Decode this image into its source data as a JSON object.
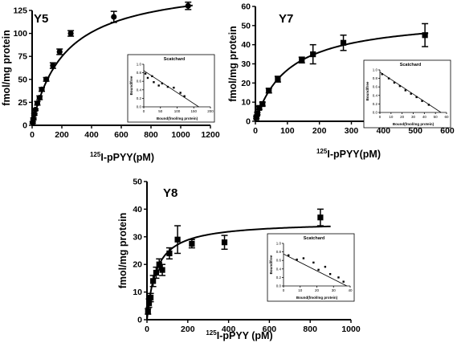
{
  "chart_data": [
    {
      "type": "scatter",
      "panel_label": "Y5",
      "xlabel_iso": "125",
      "xlabel_main": "I-pPYY(pM)",
      "ylabel": "fmol/mg protein",
      "xlim": [
        0,
        1200
      ],
      "ylim": [
        0,
        125
      ],
      "xticks": [
        0,
        200,
        400,
        600,
        800,
        1000,
        1200
      ],
      "yticks": [
        0,
        25,
        50,
        75,
        100,
        125
      ],
      "marker": "circle",
      "fit": {
        "model": "one-site binding",
        "bmax": 157,
        "kd": 220
      },
      "points": [
        {
          "x": 4,
          "y": 3
        },
        {
          "x": 9,
          "y": 7
        },
        {
          "x": 15,
          "y": 12
        },
        {
          "x": 22,
          "y": 17
        },
        {
          "x": 35,
          "y": 24
        },
        {
          "x": 50,
          "y": 30
        },
        {
          "x": 65,
          "y": 39
        },
        {
          "x": 95,
          "y": 50
        },
        {
          "x": 140,
          "y": 65
        },
        {
          "x": 185,
          "y": 80
        },
        {
          "x": 260,
          "y": 100
        },
        {
          "x": 550,
          "y": 118
        },
        {
          "x": 1050,
          "y": 130
        }
      ],
      "errors": [
        1,
        1,
        1,
        1,
        2,
        2,
        2,
        2,
        3,
        3,
        3,
        6,
        4
      ],
      "inset": {
        "title": "Scatchard",
        "xlabel": "Bound(fmol/mg protein)",
        "ylabel": "Bound/free",
        "xlim": [
          0,
          200
        ],
        "ylim": [
          0,
          1
        ],
        "xticks": [
          0,
          50,
          100,
          150,
          200
        ],
        "yticks": [
          0.0,
          0.2,
          0.4,
          0.6,
          0.8,
          1.0
        ],
        "points": [
          {
            "x": 5,
            "y": 0.78
          },
          {
            "x": 12,
            "y": 0.68
          },
          {
            "x": 25,
            "y": 0.72
          },
          {
            "x": 30,
            "y": 0.58
          },
          {
            "x": 45,
            "y": 0.5
          },
          {
            "x": 55,
            "y": 0.55
          },
          {
            "x": 72,
            "y": 0.47
          },
          {
            "x": 90,
            "y": 0.45
          },
          {
            "x": 110,
            "y": 0.33
          },
          {
            "x": 122,
            "y": 0.25
          }
        ],
        "line": {
          "x0": 0,
          "y0": 0.85,
          "x1": 165,
          "y1": 0.0
        }
      }
    },
    {
      "type": "scatter",
      "panel_label": "Y7",
      "xlabel_iso": "125",
      "xlabel_main": "I-pPYY(pM)",
      "ylabel": "fmol/mg protein",
      "xlim": [
        0,
        600
      ],
      "ylim": [
        0,
        60
      ],
      "xticks": [
        0,
        100,
        200,
        300,
        400,
        500,
        600
      ],
      "yticks": [
        0,
        10,
        20,
        30,
        40,
        50,
        60
      ],
      "marker": "square",
      "fit": {
        "model": "one-site binding",
        "bmax": 55,
        "kd": 105
      },
      "points": [
        {
          "x": 3,
          "y": 2
        },
        {
          "x": 6,
          "y": 4
        },
        {
          "x": 12,
          "y": 7
        },
        {
          "x": 22,
          "y": 9
        },
        {
          "x": 42,
          "y": 16
        },
        {
          "x": 70,
          "y": 22
        },
        {
          "x": 145,
          "y": 32
        },
        {
          "x": 180,
          "y": 35
        },
        {
          "x": 275,
          "y": 41
        },
        {
          "x": 530,
          "y": 45
        }
      ],
      "errors": [
        0.5,
        0.6,
        0.8,
        1,
        1.2,
        1.5,
        1.5,
        5,
        4,
        6
      ],
      "inset": {
        "title": "Scatchard",
        "xlabel": "Bound(fmol/mg protein)",
        "ylabel": "Bound/free",
        "xlim": [
          0,
          60
        ],
        "ylim": [
          0,
          1
        ],
        "xticks": [
          0,
          10,
          20,
          30,
          40,
          50,
          60
        ],
        "yticks": [
          0.0,
          0.2,
          0.4,
          0.6,
          0.8,
          1.0
        ],
        "points": [
          {
            "x": 2,
            "y": 0.9
          },
          {
            "x": 8,
            "y": 0.8
          },
          {
            "x": 13,
            "y": 0.7
          },
          {
            "x": 18,
            "y": 0.62
          },
          {
            "x": 23,
            "y": 0.52
          },
          {
            "x": 28,
            "y": 0.44
          },
          {
            "x": 33,
            "y": 0.36
          },
          {
            "x": 38,
            "y": 0.27
          },
          {
            "x": 44,
            "y": 0.18
          }
        ],
        "line": {
          "x0": 0,
          "y0": 0.95,
          "x1": 55,
          "y1": 0.0
        }
      }
    },
    {
      "type": "scatter",
      "panel_label": "Y8",
      "xlabel_iso": "125",
      "xlabel_main": "I-pPYY (pM)",
      "ylabel": "fmol/mg protein",
      "xlim": [
        0,
        1000
      ],
      "ylim": [
        0,
        50
      ],
      "xticks": [
        0,
        200,
        400,
        600,
        800,
        1000
      ],
      "yticks": [
        0,
        10,
        20,
        30,
        40,
        50
      ],
      "marker": "square",
      "fit": {
        "model": "one-site binding",
        "bmax": 35.5,
        "kd": 46
      },
      "points": [
        {
          "x": 5,
          "y": 3
        },
        {
          "x": 10,
          "y": 6
        },
        {
          "x": 18,
          "y": 8
        },
        {
          "x": 30,
          "y": 14
        },
        {
          "x": 45,
          "y": 17
        },
        {
          "x": 60,
          "y": 20
        },
        {
          "x": 75,
          "y": 18
        },
        {
          "x": 110,
          "y": 24
        },
        {
          "x": 150,
          "y": 29
        },
        {
          "x": 220,
          "y": 27.5
        },
        {
          "x": 380,
          "y": 28
        },
        {
          "x": 850,
          "y": 37
        }
      ],
      "errors": [
        1,
        1.5,
        1.5,
        2,
        2,
        2,
        2,
        2,
        5,
        1.5,
        2.5,
        3
      ],
      "inset": {
        "title": "Scatchard",
        "xlabel": "Bound(fmol/mg protein)",
        "ylabel": "Bound/free",
        "xlim": [
          0,
          40
        ],
        "ylim": [
          0,
          1
        ],
        "xticks": [
          0,
          10,
          20,
          30,
          40
        ],
        "yticks": [
          0.0,
          0.2,
          0.4,
          0.6,
          0.8,
          1.0
        ],
        "points": [
          {
            "x": 3,
            "y": 0.72
          },
          {
            "x": 8,
            "y": 0.62
          },
          {
            "x": 12,
            "y": 0.65
          },
          {
            "x": 18,
            "y": 0.55
          },
          {
            "x": 21,
            "y": 0.38
          },
          {
            "x": 25,
            "y": 0.45
          },
          {
            "x": 28,
            "y": 0.28
          },
          {
            "x": 33,
            "y": 0.2
          },
          {
            "x": 36,
            "y": 0.1
          }
        ],
        "line": {
          "x0": 0,
          "y0": 0.75,
          "x1": 38,
          "y1": 0.0
        }
      }
    }
  ]
}
